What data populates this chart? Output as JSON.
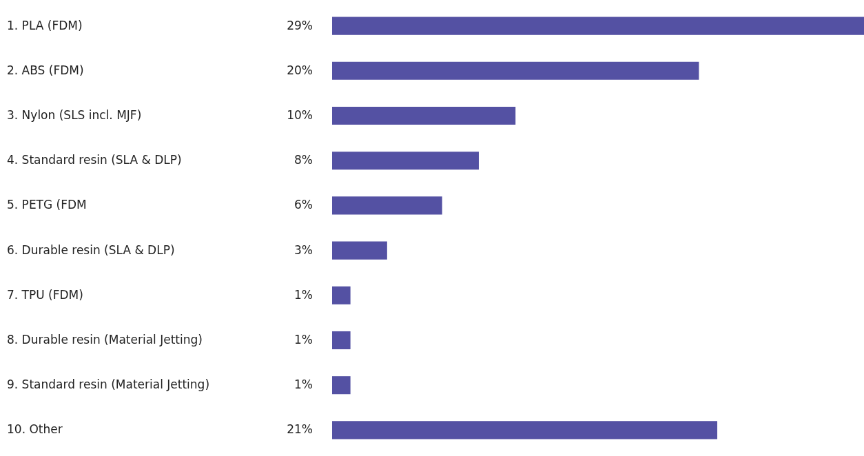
{
  "chart_data": {
    "type": "bar",
    "orientation": "horizontal",
    "categories": [
      "1.   PLA (FDM)",
      "2.   ABS (FDM)",
      "3.   Nylon (SLS incl. MJF)",
      "4.   Standard resin (SLA & DLP)",
      "5.   PETG (FDM",
      "6.   Durable resin (SLA & DLP)",
      "7.   TPU (FDM)",
      "8.   Durable resin (Material Jetting)",
      "9.   Standard resin (Material Jetting)",
      "10. Other"
    ],
    "values": [
      29,
      20,
      10,
      8,
      6,
      3,
      1,
      1,
      1,
      21
    ],
    "value_labels": [
      "29%",
      "20%",
      "10%",
      "8%",
      "6%",
      "3%",
      "1%",
      "1%",
      "1%",
      "21%"
    ],
    "color": "#5451a3"
  }
}
